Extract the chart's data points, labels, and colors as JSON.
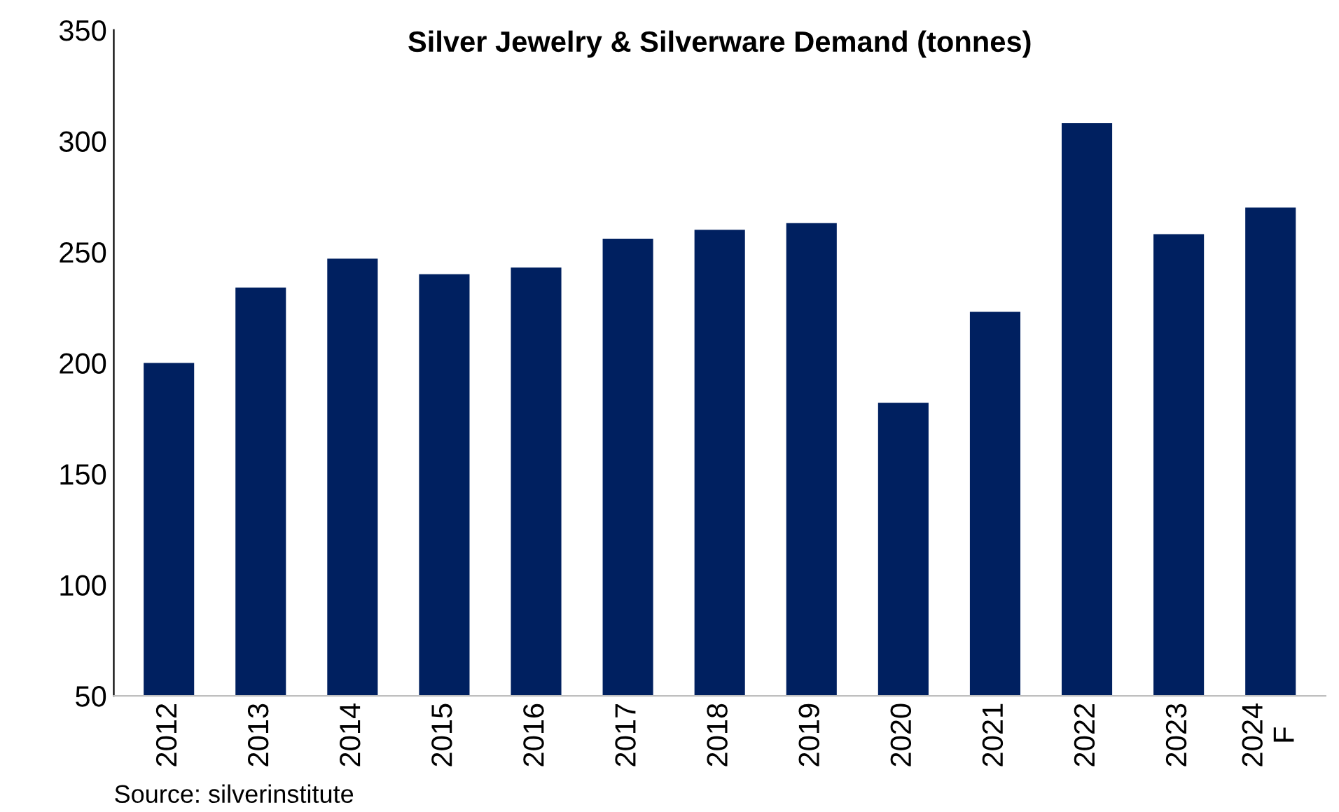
{
  "chart_data": {
    "type": "bar",
    "title": "Silver Jewelry & Silverware Demand (tonnes)",
    "categories": [
      "2012",
      "2013",
      "2014",
      "2015",
      "2016",
      "2017",
      "2018",
      "2019",
      "2020",
      "2021",
      "2022",
      "2023",
      "2024\nF"
    ],
    "values": [
      200,
      234,
      247,
      240,
      243,
      256,
      260,
      263,
      182,
      223,
      308,
      258,
      270
    ],
    "color": "#002060",
    "ylim": [
      50,
      350
    ],
    "yticks": [
      50,
      100,
      150,
      200,
      250,
      300,
      350
    ],
    "grid": false,
    "annotations": [
      "Source: silverinstitute"
    ]
  }
}
